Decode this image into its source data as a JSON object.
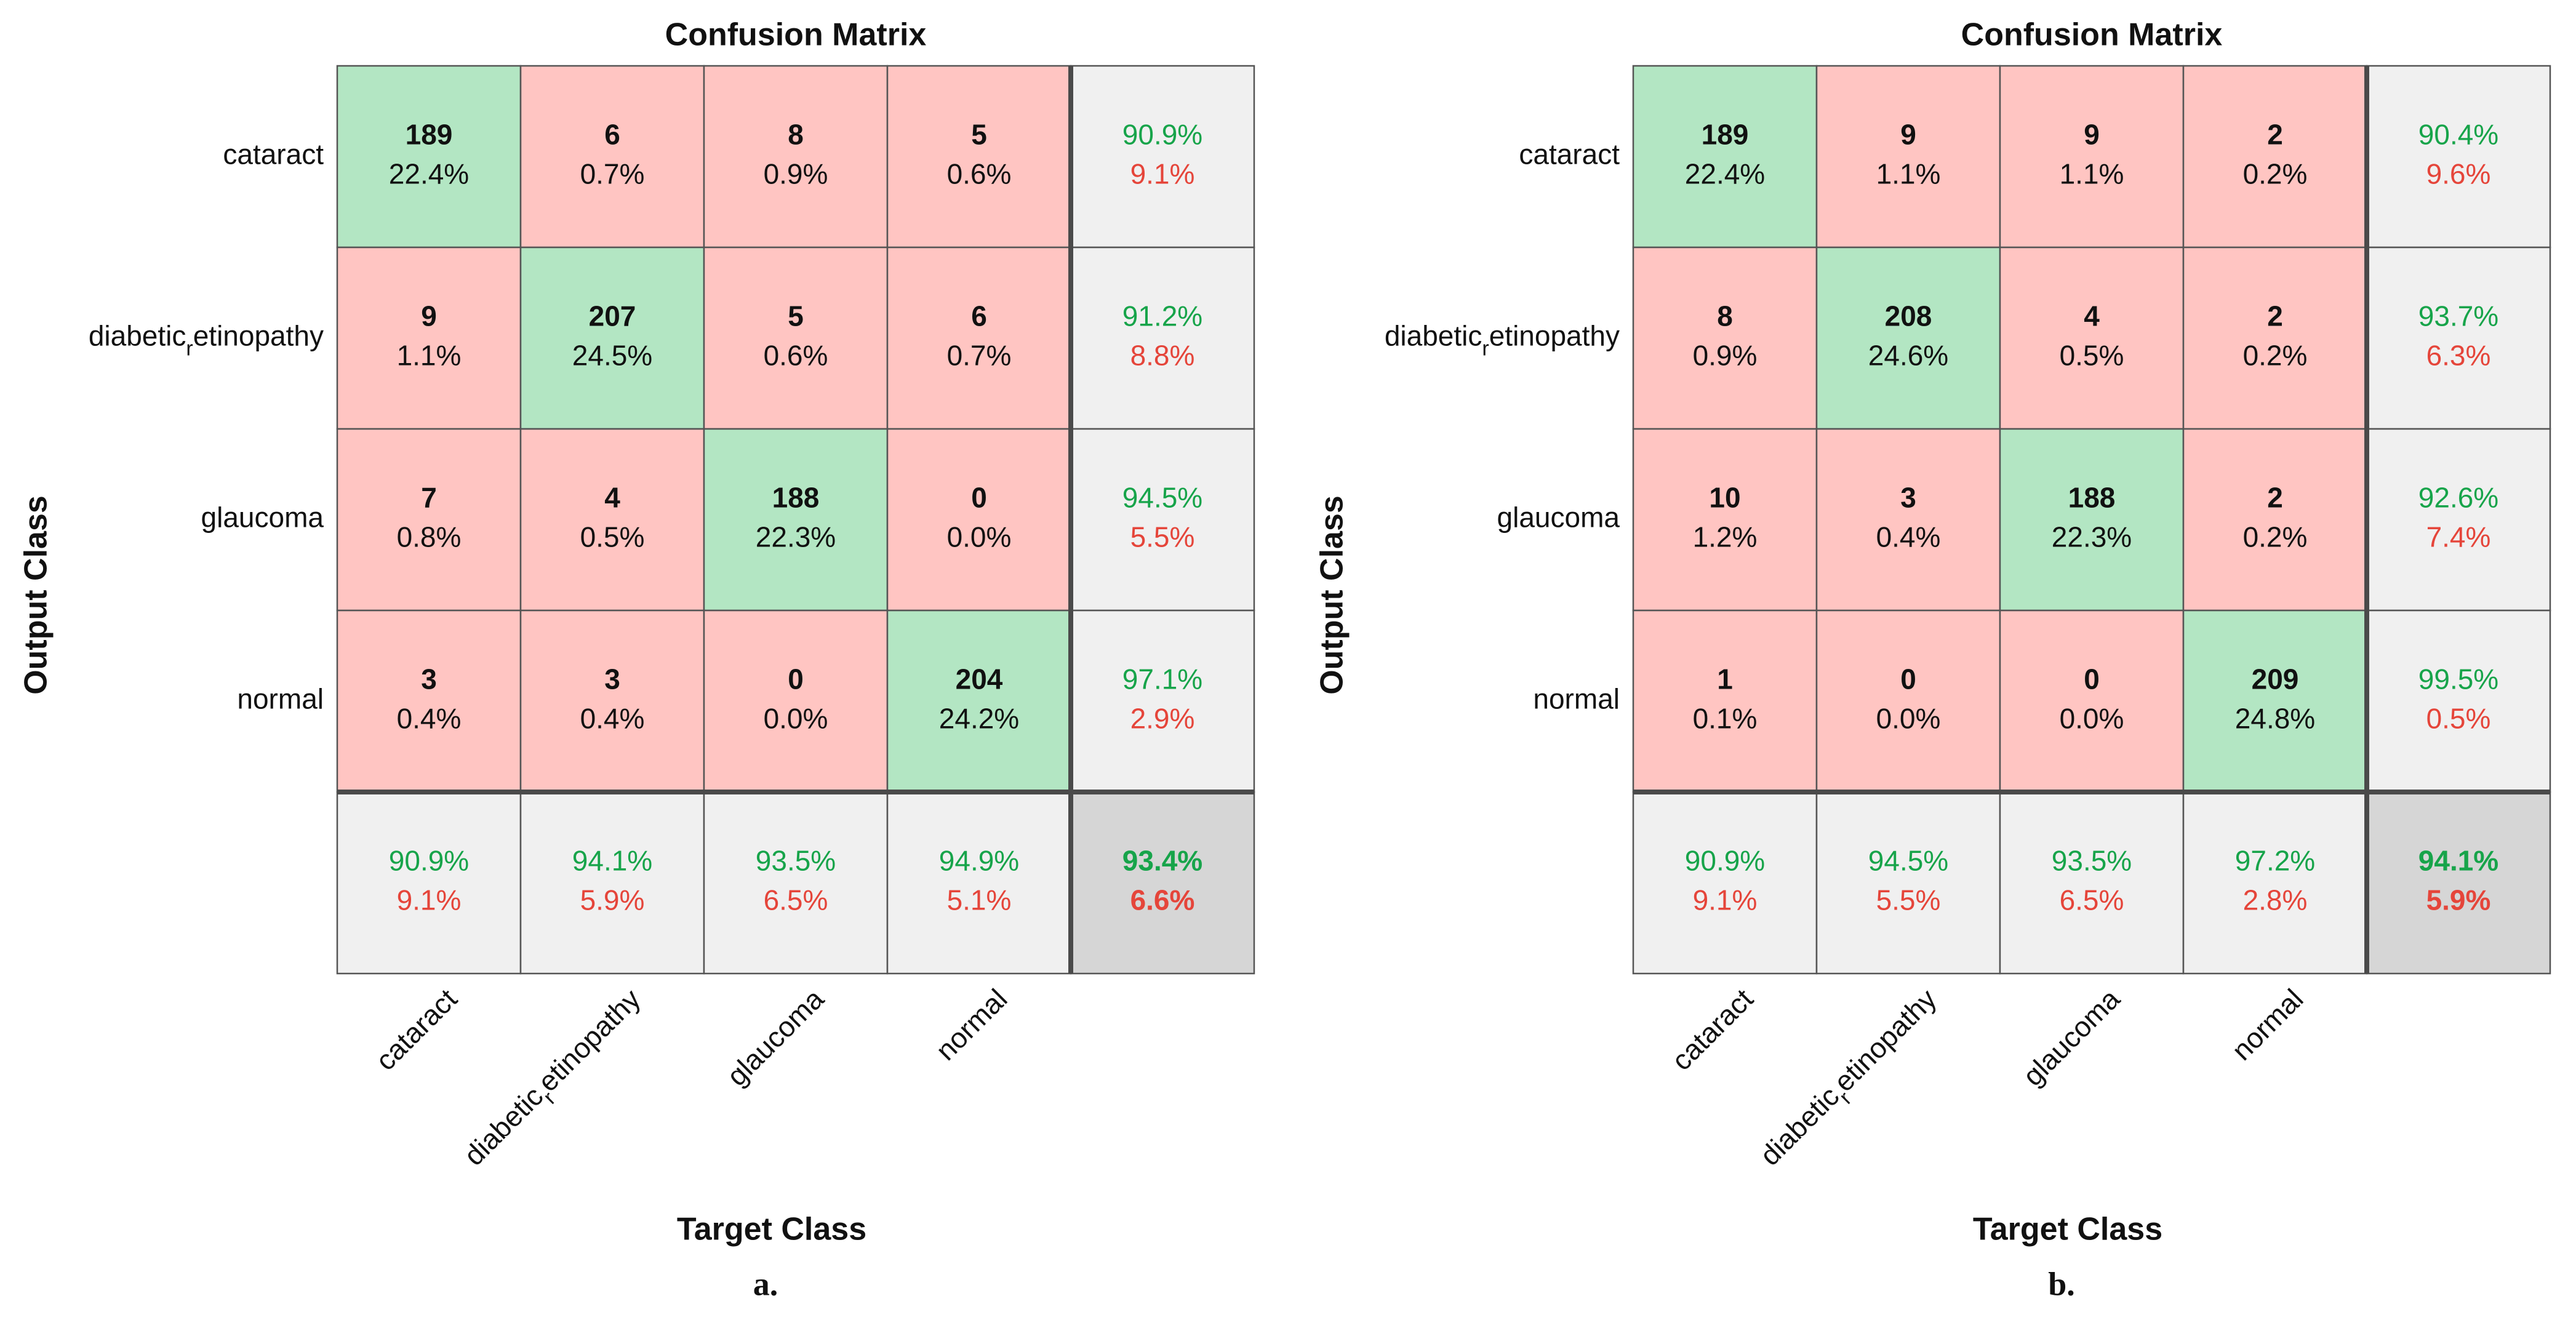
{
  "colors": {
    "correct_cell": "#b3e6c3",
    "error_cell": "#ffc5c2",
    "summary_cell": "#f0f0f0",
    "overall_cell": "#d6d6d6",
    "green_text": "#17a44a",
    "red_text": "#e5453a",
    "grid_line": "#555555",
    "thick_line": "#4a4a4a"
  },
  "chart_data": [
    {
      "type": "heatmap",
      "title": "Confusion Matrix",
      "xlabel": "Target Class",
      "ylabel": "Output Class",
      "caption": "a.",
      "classes": [
        {
          "pre": "cataract",
          "sub": "",
          "post": ""
        },
        {
          "pre": "diabetic",
          "sub": "r",
          "post": "etinopathy"
        },
        {
          "pre": "glaucoma",
          "sub": "",
          "post": ""
        },
        {
          "pre": "normal",
          "sub": "",
          "post": ""
        }
      ],
      "counts": [
        [
          189,
          6,
          8,
          5
        ],
        [
          9,
          207,
          5,
          6
        ],
        [
          7,
          4,
          188,
          0
        ],
        [
          3,
          3,
          0,
          204
        ]
      ],
      "percents": [
        [
          "22.4%",
          "0.7%",
          "0.9%",
          "0.6%"
        ],
        [
          "1.1%",
          "24.5%",
          "0.6%",
          "0.7%"
        ],
        [
          "0.8%",
          "0.5%",
          "22.3%",
          "0.0%"
        ],
        [
          "0.4%",
          "0.4%",
          "0.0%",
          "24.2%"
        ]
      ],
      "row_summary": [
        [
          "90.9%",
          "9.1%"
        ],
        [
          "91.2%",
          "8.8%"
        ],
        [
          "94.5%",
          "5.5%"
        ],
        [
          "97.1%",
          "2.9%"
        ]
      ],
      "col_summary": [
        [
          "90.9%",
          "9.1%"
        ],
        [
          "94.1%",
          "5.9%"
        ],
        [
          "93.5%",
          "6.5%"
        ],
        [
          "94.9%",
          "5.1%"
        ]
      ],
      "overall": [
        "93.4%",
        "6.6%"
      ]
    },
    {
      "type": "heatmap",
      "title": "Confusion Matrix",
      "xlabel": "Target Class",
      "ylabel": "Output Class",
      "caption": "b.",
      "classes": [
        {
          "pre": "cataract",
          "sub": "",
          "post": ""
        },
        {
          "pre": "diabetic",
          "sub": "r",
          "post": "etinopathy"
        },
        {
          "pre": "glaucoma",
          "sub": "",
          "post": ""
        },
        {
          "pre": "normal",
          "sub": "",
          "post": ""
        }
      ],
      "counts": [
        [
          189,
          9,
          9,
          2
        ],
        [
          8,
          208,
          4,
          2
        ],
        [
          10,
          3,
          188,
          2
        ],
        [
          1,
          0,
          0,
          209
        ]
      ],
      "percents": [
        [
          "22.4%",
          "1.1%",
          "1.1%",
          "0.2%"
        ],
        [
          "0.9%",
          "24.6%",
          "0.5%",
          "0.2%"
        ],
        [
          "1.2%",
          "0.4%",
          "22.3%",
          "0.2%"
        ],
        [
          "0.1%",
          "0.0%",
          "0.0%",
          "24.8%"
        ]
      ],
      "row_summary": [
        [
          "90.4%",
          "9.6%"
        ],
        [
          "93.7%",
          "6.3%"
        ],
        [
          "92.6%",
          "7.4%"
        ],
        [
          "99.5%",
          "0.5%"
        ]
      ],
      "col_summary": [
        [
          "90.9%",
          "9.1%"
        ],
        [
          "94.5%",
          "5.5%"
        ],
        [
          "93.5%",
          "6.5%"
        ],
        [
          "97.2%",
          "2.8%"
        ]
      ],
      "overall": [
        "94.1%",
        "5.9%"
      ]
    }
  ]
}
